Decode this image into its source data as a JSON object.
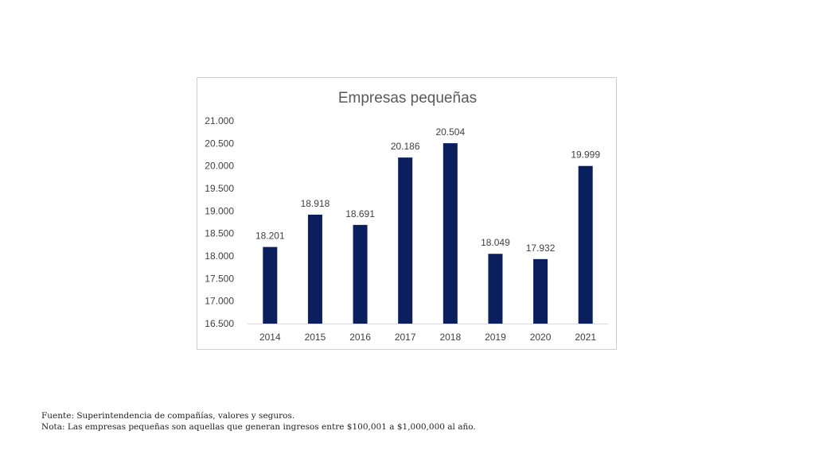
{
  "chart_data": {
    "type": "bar",
    "title": "Empresas pequeñas",
    "categories": [
      "2014",
      "2015",
      "2016",
      "2017",
      "2018",
      "2019",
      "2020",
      "2021"
    ],
    "values": [
      18201,
      18918,
      18691,
      20186,
      20504,
      18049,
      17932,
      19999
    ],
    "value_labels": [
      "18.201",
      "18.918",
      "18.691",
      "20.186",
      "20.504",
      "18.049",
      "17.932",
      "19.999"
    ],
    "ylim": [
      16500,
      21000
    ],
    "yticks": [
      16500,
      17000,
      17500,
      18000,
      18500,
      19000,
      19500,
      20000,
      20500,
      21000
    ],
    "ytick_labels": [
      "16.500",
      "17.000",
      "17.500",
      "18.000",
      "18.500",
      "19.000",
      "19.500",
      "20.000",
      "20.500",
      "21.000"
    ],
    "xlabel": "",
    "ylabel": "",
    "grid": false,
    "bar_color": "#0b1f5e"
  },
  "notes": {
    "source": "Fuente: Superintendencia de compañías, valores y seguros.",
    "note": "Nota: Las empresas pequeñas son aquellas que generan ingresos entre $100,001 a $1,000,000 al año."
  }
}
